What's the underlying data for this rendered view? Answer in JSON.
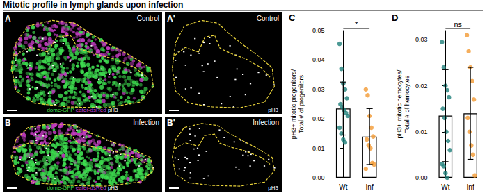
{
  "figure_title": "Mitotic profile in lymph glands upon infection",
  "image_panels": [
    {
      "panel": "A",
      "condition": "Control",
      "stains": [
        {
          "text": "dome-GFP",
          "color": "#3ddc4f"
        },
        {
          "text": "eater-dsRed",
          "color": "#c23cc0"
        },
        {
          "text": "pH3",
          "color": "#ffffff"
        }
      ]
    },
    {
      "panel": "A'",
      "condition": "Control",
      "stains": [
        {
          "text": "pH3",
          "color": "#ffffff"
        }
      ]
    },
    {
      "panel": "B",
      "condition": "Infection",
      "stains": [
        {
          "text": "dome-GFP",
          "color": "#3ddc4f"
        },
        {
          "text": "eater-dsRed",
          "color": "#c23cc0"
        },
        {
          "text": "pH3",
          "color": "#ffffff"
        }
      ]
    },
    {
      "panel": "B'",
      "condition": "Infection",
      "stains": [
        {
          "text": "pH3",
          "color": "#ffffff"
        }
      ]
    }
  ],
  "chart_data": [
    {
      "type": "bar",
      "panel": "C",
      "ylabel": "pH3+ mitotic progenitors/ Total # of progenitors",
      "categories": [
        "Wt",
        "Inf"
      ],
      "values": [
        0.0235,
        0.014
      ],
      "errors": [
        0.009,
        0.0095
      ],
      "points": [
        [
          0.0455,
          0.037,
          0.032,
          0.03,
          0.027,
          0.025,
          0.024,
          0.023,
          0.022,
          0.021,
          0.017,
          0.015,
          0.013,
          0.012
        ],
        [
          0.03,
          0.028,
          0.021,
          0.017,
          0.014,
          0.013,
          0.011,
          0.01,
          0.005,
          0.0045,
          0.003
        ]
      ],
      "colors": [
        "#1f7f7a",
        "#f39a33"
      ],
      "annotation": "*",
      "ylim": [
        0,
        0.05
      ],
      "yticks": [
        {
          "value": 0,
          "label": "0.00"
        },
        {
          "value": 0.01,
          "label": "0.01"
        },
        {
          "value": 0.02,
          "label": "0.02"
        },
        {
          "value": 0.03,
          "label": "0.03"
        },
        {
          "value": 0.04,
          "label": "0.04"
        },
        {
          "value": 0.05,
          "label": "0.05"
        }
      ],
      "grid": false
    },
    {
      "type": "bar",
      "panel": "D",
      "ylabel": "pH3+ mitotic hemocytes/ Total # of hemocytes",
      "categories": [
        "Wt",
        "Inf"
      ],
      "values": [
        0.0135,
        0.014
      ],
      "errors": [
        0.01,
        0.01
      ],
      "points": [
        [
          0.0295,
          0.024,
          0.02,
          0.019,
          0.0175,
          0.015,
          0.013,
          0.01,
          0.008,
          0.006,
          0.003,
          0.0025,
          0.001,
          0.0
        ],
        [
          0.031,
          0.0275,
          0.024,
          0.021,
          0.017,
          0.013,
          0.01,
          0.007,
          0.005,
          0.0005
        ]
      ],
      "colors": [
        "#1f7f7a",
        "#f39a33"
      ],
      "annotation": "ns",
      "ylim": [
        0,
        0.032
      ],
      "yticks": [
        {
          "value": 0,
          "label": "0.00"
        },
        {
          "value": 0.01,
          "label": "0.01"
        },
        {
          "value": 0.02,
          "label": "0.02"
        },
        {
          "value": 0.03,
          "label": "0.03"
        }
      ],
      "grid": false
    }
  ]
}
